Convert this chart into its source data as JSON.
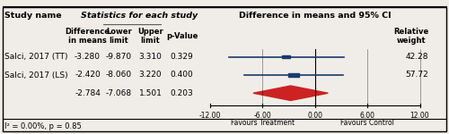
{
  "studies": [
    "Salci, 2017 (TT)",
    "Salci, 2017 (LS)"
  ],
  "diff_means": [
    -3.28,
    -2.42
  ],
  "lower": [
    -9.87,
    -8.06
  ],
  "upper": [
    3.31,
    3.22
  ],
  "pvalues": [
    0.329,
    0.4
  ],
  "pooled_diff": -2.784,
  "pooled_lower": -7.068,
  "pooled_upper": 1.501,
  "pooled_pvalue": 0.203,
  "weights": [
    42.28,
    57.72
  ],
  "i2_text": "I² = 0.00%, p = 0.85",
  "header_study": "Study name",
  "header_stats": "Statistics for each study",
  "header_forest": "Difference in means and 95% CI",
  "col_diff": "Difference\nin means",
  "col_lower": "Lower\nlimit",
  "col_upper": "Upper\nlimit",
  "col_pval": "p-Value",
  "col_weight": "Relative\nweight",
  "favours_treatment": "Favours Treatment",
  "favours_control": "Favours Control",
  "xmin": -12.0,
  "xmax": 12.0,
  "xticks": [
    -12.0,
    -6.0,
    0.0,
    6.0,
    12.0
  ],
  "bg_color": "#f0ede8",
  "box_color_study": "#1a3a6b",
  "diamond_color": "#cc2222",
  "line_color": "#1a3a6b"
}
